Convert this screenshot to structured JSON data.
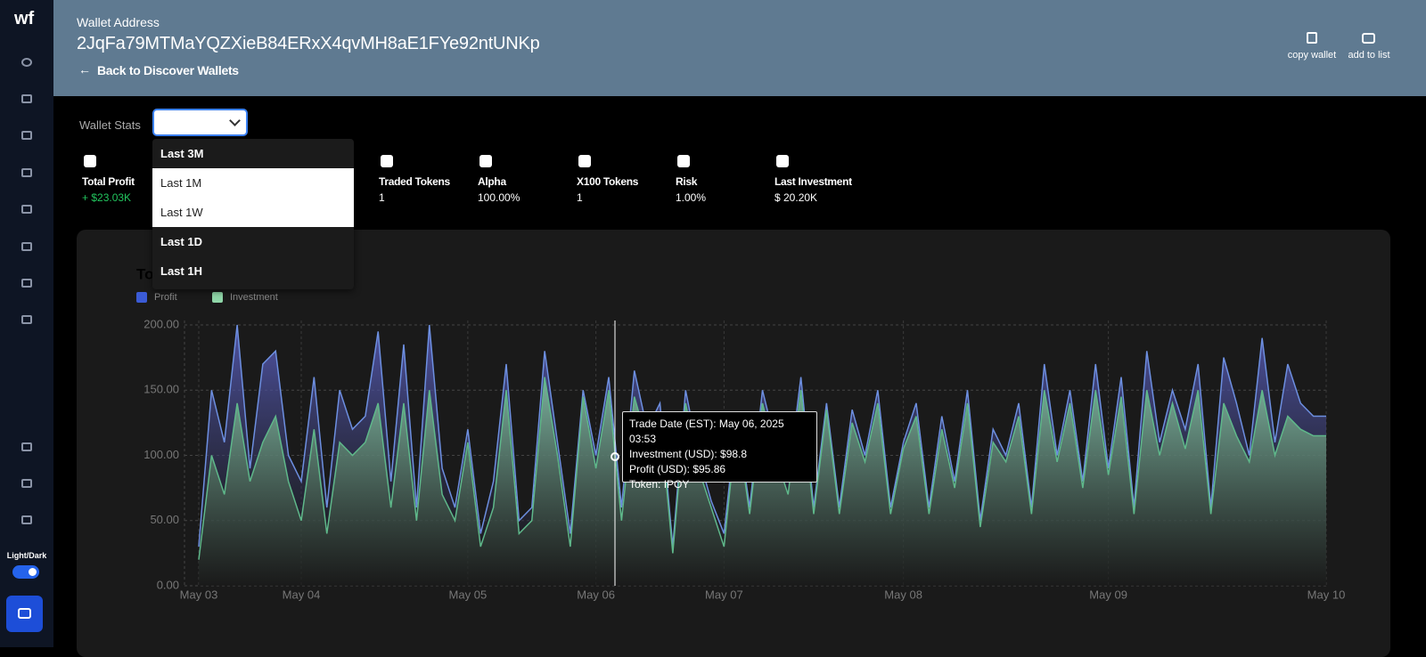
{
  "sidebar": {
    "logo": "wf",
    "theme_label": "Light/Dark"
  },
  "header": {
    "label": "Wallet Address",
    "address": "2JqFa79MTMaYQZXieB84ERxX4qvMH8aE1FYe92ntUNKp",
    "back": "Back to Discover Wallets",
    "actions": [
      "copy wallet",
      "add to list"
    ]
  },
  "filter": {
    "label": "Wallet Stats",
    "options": [
      "Last 3M",
      "Last 1M",
      "Last 1W",
      "Last 1D",
      "Last 1H"
    ]
  },
  "stats": [
    {
      "label": "Total Profit",
      "value": "+ $23.03K"
    },
    {
      "label": "Traded Tokens",
      "value": "1"
    },
    {
      "label": "Alpha",
      "value": "100.00%"
    },
    {
      "label": "X100 Tokens",
      "value": "1"
    },
    {
      "label": "Risk",
      "value": "1.00%"
    },
    {
      "label": "Last Investment",
      "value": "$ 20.20K"
    }
  ],
  "tooltip": [
    "Trade Date (EST): May 06, 2025 03:53",
    "Investment (USD): $98.8",
    "Profit (USD): $95.86",
    "Token: IPOY"
  ],
  "chart_data": {
    "type": "area",
    "title": "To",
    "categories": [
      "May 03",
      null,
      null,
      null,
      null,
      null,
      null,
      null,
      "May 04",
      null,
      null,
      null,
      null,
      null,
      null,
      null,
      null,
      null,
      null,
      null,
      null,
      "May 05",
      null,
      null,
      null,
      null,
      null,
      null,
      null,
      null,
      null,
      "May 06",
      null,
      null,
      null,
      null,
      null,
      null,
      null,
      null,
      null,
      "May 07",
      null,
      null,
      null,
      null,
      null,
      null,
      null,
      null,
      null,
      null,
      null,
      null,
      null,
      "May 08",
      null,
      null,
      null,
      null,
      null,
      null,
      null,
      null,
      null,
      null,
      null,
      null,
      null,
      null,
      null,
      "May 09",
      null,
      null,
      null,
      null,
      null,
      null,
      null,
      null,
      null,
      null,
      null,
      null,
      null,
      null,
      null,
      null,
      "May 10"
    ],
    "series": [
      {
        "name": "Profit",
        "color": "#3b5bd6",
        "values": [
          30,
          150,
          110,
          200,
          90,
          170,
          180,
          100,
          80,
          160,
          60,
          150,
          120,
          130,
          195,
          80,
          185,
          60,
          200,
          90,
          60,
          120,
          40,
          80,
          170,
          50,
          60,
          180,
          110,
          40,
          150,
          100,
          160,
          60,
          165,
          120,
          140,
          30,
          150,
          100,
          65,
          40,
          130,
          60,
          150,
          110,
          80,
          160,
          60,
          140,
          60,
          135,
          100,
          150,
          60,
          110,
          140,
          60,
          130,
          80,
          150,
          50,
          120,
          100,
          140,
          60,
          170,
          100,
          150,
          80,
          170,
          90,
          160,
          60,
          180,
          110,
          150,
          120,
          170,
          60,
          175,
          140,
          100,
          190,
          110,
          170,
          140,
          130,
          130
        ]
      },
      {
        "name": "Investment",
        "color": "#8fd6a8",
        "values": [
          20,
          100,
          70,
          140,
          80,
          110,
          130,
          80,
          50,
          120,
          40,
          110,
          100,
          110,
          140,
          60,
          140,
          50,
          150,
          70,
          50,
          110,
          30,
          60,
          150,
          40,
          50,
          160,
          100,
          30,
          145,
          90,
          150,
          50,
          145,
          110,
          130,
          25,
          140,
          90,
          60,
          30,
          125,
          55,
          140,
          100,
          70,
          150,
          55,
          135,
          55,
          125,
          95,
          140,
          55,
          105,
          130,
          55,
          120,
          75,
          140,
          45,
          110,
          95,
          130,
          55,
          150,
          95,
          140,
          75,
          150,
          85,
          145,
          55,
          150,
          100,
          140,
          105,
          150,
          55,
          140,
          115,
          95,
          150,
          100,
          130,
          120,
          115,
          115
        ]
      }
    ],
    "ylim": [
      0,
      200
    ],
    "yticks": [
      {
        "value": 0,
        "label": "0.00"
      },
      {
        "value": 50,
        "label": "50.00"
      },
      {
        "value": 100,
        "label": "100.00"
      },
      {
        "value": 150,
        "label": "150.00"
      },
      {
        "value": 200,
        "label": "200.00"
      }
    ],
    "grid": true
  }
}
